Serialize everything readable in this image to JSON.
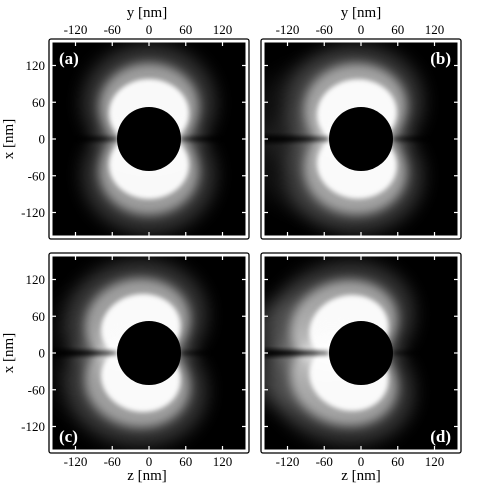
{
  "figure": {
    "top_axis_label": "y [nm]",
    "bottom_axis_label": "z [nm]",
    "left_axis_label": "x [nm]",
    "x_ticks": [
      "-120",
      "-60",
      "0",
      "60",
      "120"
    ],
    "y_ticks": [
      "120",
      "60",
      "0",
      "-60",
      "-120"
    ]
  },
  "panels": [
    {
      "id": "a",
      "label": "(a)",
      "asymmetry": 0.0,
      "halo": 0.0
    },
    {
      "id": "b",
      "label": "(b)",
      "asymmetry": 0.25,
      "halo": 0.5
    },
    {
      "id": "c",
      "label": "(c)",
      "asymmetry": 0.5,
      "halo": 0.1
    },
    {
      "id": "d",
      "label": "(d)",
      "asymmetry": 0.75,
      "halo": 0.6
    }
  ],
  "colors": {
    "background": "#000000",
    "field_max": "#ffffff",
    "frame": "#000000"
  }
}
